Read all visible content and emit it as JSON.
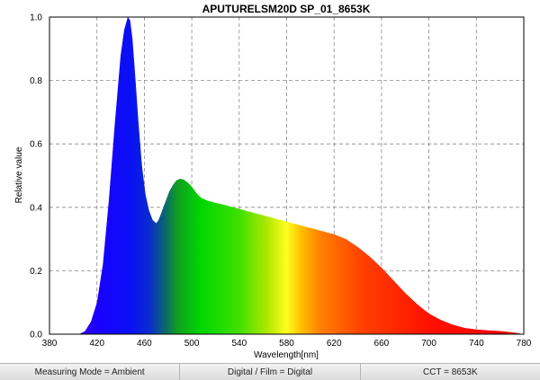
{
  "chart_data": {
    "type": "area",
    "title": "APUTURELSM20D SP_01_8653K",
    "xlabel": "Wavelength[nm]",
    "ylabel": "Relative value",
    "xlim": [
      380,
      780
    ],
    "ylim": [
      0,
      1.0
    ],
    "xticks": [
      "380",
      "420",
      "460",
      "500",
      "540",
      "580",
      "620",
      "660",
      "700",
      "740",
      "780"
    ],
    "yticks": [
      "0.0",
      "0.2",
      "0.4",
      "0.6",
      "0.8",
      "1.0"
    ],
    "grid": true,
    "fill": "visible-spectrum gradient",
    "series": [
      {
        "x": [
          405,
          410,
          415,
          420,
          425,
          430,
          435,
          440,
          443,
          446,
          448,
          450,
          452,
          455,
          458,
          461,
          464,
          467,
          470,
          472,
          475,
          478,
          481,
          484,
          487,
          490,
          493,
          496,
          499,
          502,
          505,
          508,
          511,
          514,
          517,
          520,
          525,
          530,
          535,
          540,
          545,
          550,
          555,
          560,
          565,
          570,
          575,
          580,
          585,
          590,
          595,
          600,
          610,
          620,
          630,
          640,
          650,
          660,
          670,
          680,
          690,
          700,
          710,
          720,
          730,
          740,
          750,
          760,
          770,
          780
        ],
        "y": [
          0.0,
          0.01,
          0.04,
          0.1,
          0.22,
          0.42,
          0.66,
          0.88,
          0.96,
          1.0,
          0.99,
          0.93,
          0.83,
          0.67,
          0.53,
          0.44,
          0.39,
          0.36,
          0.35,
          0.36,
          0.39,
          0.42,
          0.45,
          0.47,
          0.485,
          0.49,
          0.488,
          0.48,
          0.47,
          0.455,
          0.44,
          0.43,
          0.425,
          0.42,
          0.418,
          0.414,
          0.41,
          0.405,
          0.4,
          0.395,
          0.39,
          0.385,
          0.38,
          0.375,
          0.37,
          0.365,
          0.36,
          0.355,
          0.35,
          0.345,
          0.34,
          0.335,
          0.325,
          0.315,
          0.3,
          0.275,
          0.245,
          0.21,
          0.17,
          0.13,
          0.095,
          0.065,
          0.045,
          0.03,
          0.02,
          0.015,
          0.012,
          0.01,
          0.006,
          0.0
        ]
      }
    ]
  },
  "status_bar": {
    "measuring_mode": "Measuring Mode = Ambient",
    "digital_film": "Digital / Film = Digital",
    "cct": "CCT = 8653K"
  }
}
